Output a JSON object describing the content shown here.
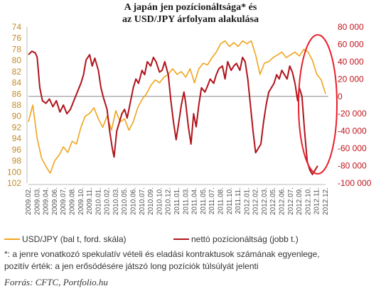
{
  "title_line1": "A japán jen pozícionáltsága* és",
  "title_line2": "az USD/JPY árfolyam alakulása",
  "legend": {
    "left": "USD/JPY (bal t,  ford. skála)",
    "right": "nettó pozícionáltság (jobb t.)"
  },
  "note_line1": "*: a jenre vonatkozó spekulatív vételi és eladási kontraktusok számának egyenlege,",
  "note_line2": "pozitív érték: a jen erősödésére játszó long pozíciók túlsúlyát jelenti",
  "source": "Forrás: CFTC, Portfolio.hu",
  "colors": {
    "usdjpy": "#f0a41e",
    "position": "#b0141c",
    "highlight": "#e8202a",
    "zero_line": "#888888"
  },
  "chart_data": {
    "type": "line",
    "x_labels": [
      "2009.02.",
      "2009.03.",
      "2009.04.",
      "2009.06.",
      "2009.07.",
      "2009.08.",
      "2009.10.",
      "2009.11.",
      "2010.01.",
      "2010.02.",
      "2010.03.",
      "2010.05.",
      "2010.06.",
      "2010.07.",
      "2010.09.",
      "2010.10.",
      "2010.12.",
      "2011.01.",
      "2011.03.",
      "2011.04.",
      "2011.05.",
      "2011.07.",
      "2011.08.",
      "2011.10.",
      "2011.11.",
      "2012.01.",
      "2012.02.",
      "2012.03.",
      "2012.05.",
      "2012.06.",
      "2012.07.",
      "2012.09.",
      "2012.10.",
      "2012.11.",
      "2012.12."
    ],
    "left_axis": {
      "ticks": [
        "74",
        "76",
        "78",
        "80",
        "82",
        "84",
        "86",
        "88",
        "90",
        "92",
        "94",
        "96",
        "98",
        "100",
        "102"
      ],
      "range": [
        74,
        102
      ],
      "reversed": true
    },
    "right_axis": {
      "ticks": [
        "80 000",
        "60 000",
        "40 000",
        "20 000",
        "0",
        "-20 000",
        "-40 000",
        "-60 000",
        "-80 000",
        "-100 000"
      ],
      "range": [
        -100000,
        80000
      ]
    },
    "series": [
      {
        "name": "USD/JPY (bal t,  ford. skála)",
        "axis": "left",
        "points": [
          [
            0,
            91.0
          ],
          [
            0.5,
            88.0
          ],
          [
            1,
            94.0
          ],
          [
            1.5,
            97.5
          ],
          [
            2,
            99.0
          ],
          [
            2.5,
            100.2
          ],
          [
            3,
            98.0
          ],
          [
            3.5,
            97.0
          ],
          [
            4,
            95.5
          ],
          [
            4.5,
            96.5
          ],
          [
            5,
            94.5
          ],
          [
            5.5,
            95.0
          ],
          [
            6,
            92.0
          ],
          [
            6.5,
            90.0
          ],
          [
            7,
            89.5
          ],
          [
            7.5,
            88.5
          ],
          [
            8,
            90.5
          ],
          [
            8.5,
            92.0
          ],
          [
            9,
            90.0
          ],
          [
            9.5,
            92.5
          ],
          [
            10,
            89.0
          ],
          [
            10.5,
            91.0
          ],
          [
            11,
            90.5
          ],
          [
            11.5,
            92.5
          ],
          [
            12,
            91.0
          ],
          [
            12.5,
            88.5
          ],
          [
            13,
            87.0
          ],
          [
            13.5,
            86.0
          ],
          [
            14,
            84.5
          ],
          [
            14.5,
            83.5
          ],
          [
            15,
            84.0
          ],
          [
            15.5,
            83.0
          ],
          [
            16,
            82.5
          ],
          [
            16.5,
            81.5
          ],
          [
            17,
            82.5
          ],
          [
            17.5,
            82.0
          ],
          [
            18,
            83.0
          ],
          [
            18.5,
            81.5
          ],
          [
            19,
            84.0
          ],
          [
            19.5,
            81.5
          ],
          [
            20,
            80.5
          ],
          [
            20.5,
            80.8
          ],
          [
            21,
            79.5
          ],
          [
            21.5,
            78.5
          ],
          [
            22,
            77.0
          ],
          [
            22.5,
            76.5
          ],
          [
            23,
            77.5
          ],
          [
            23.5,
            76.8
          ],
          [
            24,
            77.5
          ],
          [
            24.5,
            76.5
          ],
          [
            25,
            77.0
          ],
          [
            25.5,
            76.5
          ],
          [
            26,
            79.0
          ],
          [
            26.5,
            82.5
          ],
          [
            27,
            80.5
          ],
          [
            27.5,
            80.2
          ],
          [
            28,
            79.5
          ],
          [
            28.5,
            79.0
          ],
          [
            29,
            78.5
          ],
          [
            29.5,
            79.5
          ],
          [
            30,
            79.0
          ],
          [
            30.5,
            78.5
          ],
          [
            31,
            79.2
          ],
          [
            31.5,
            78.0
          ],
          [
            32,
            78.5
          ],
          [
            32.5,
            80.0
          ],
          [
            33,
            82.5
          ],
          [
            33.5,
            83.5
          ],
          [
            34,
            86.0
          ]
        ]
      },
      {
        "name": "nettó pozícionáltság (jobb t.)",
        "axis": "right",
        "points": [
          [
            0,
            48000
          ],
          [
            0.4,
            52000
          ],
          [
            0.8,
            50000
          ],
          [
            1,
            45000
          ],
          [
            1.3,
            10000
          ],
          [
            1.6,
            -5000
          ],
          [
            2,
            -8000
          ],
          [
            2.4,
            -3000
          ],
          [
            2.8,
            -12000
          ],
          [
            3.2,
            -5000
          ],
          [
            3.6,
            -18000
          ],
          [
            4,
            -10000
          ],
          [
            4.4,
            -20000
          ],
          [
            4.8,
            -15000
          ],
          [
            5.2,
            -5000
          ],
          [
            5.6,
            5000
          ],
          [
            6,
            15000
          ],
          [
            6.3,
            25000
          ],
          [
            6.6,
            42000
          ],
          [
            7,
            48000
          ],
          [
            7.3,
            35000
          ],
          [
            7.6,
            44000
          ],
          [
            8,
            30000
          ],
          [
            8.3,
            10000
          ],
          [
            8.6,
            -2000
          ],
          [
            9,
            -15000
          ],
          [
            9.3,
            -40000
          ],
          [
            9.6,
            -60000
          ],
          [
            9.8,
            -70000
          ],
          [
            10.1,
            -40000
          ],
          [
            10.4,
            -30000
          ],
          [
            10.7,
            -20000
          ],
          [
            11,
            -15000
          ],
          [
            11.3,
            -25000
          ],
          [
            11.6,
            -10000
          ],
          [
            12,
            10000
          ],
          [
            12.3,
            20000
          ],
          [
            12.6,
            15000
          ],
          [
            13,
            30000
          ],
          [
            13.3,
            25000
          ],
          [
            13.6,
            40000
          ],
          [
            14,
            35000
          ],
          [
            14.3,
            45000
          ],
          [
            14.6,
            40000
          ],
          [
            15,
            28000
          ],
          [
            15.3,
            30000
          ],
          [
            15.6,
            40000
          ],
          [
            16,
            25000
          ],
          [
            16.3,
            -5000
          ],
          [
            16.6,
            -30000
          ],
          [
            16.9,
            -50000
          ],
          [
            17.2,
            -30000
          ],
          [
            17.5,
            -10000
          ],
          [
            17.8,
            5000
          ],
          [
            18,
            -8000
          ],
          [
            18.3,
            -35000
          ],
          [
            18.6,
            -55000
          ],
          [
            18.9,
            -20000
          ],
          [
            19.2,
            -35000
          ],
          [
            19.5,
            -10000
          ],
          [
            19.8,
            10000
          ],
          [
            20.2,
            5000
          ],
          [
            20.5,
            12000
          ],
          [
            20.8,
            20000
          ],
          [
            21.2,
            15000
          ],
          [
            21.5,
            25000
          ],
          [
            21.8,
            32000
          ],
          [
            22.2,
            35000
          ],
          [
            22.5,
            20000
          ],
          [
            22.8,
            40000
          ],
          [
            23.2,
            30000
          ],
          [
            23.5,
            35000
          ],
          [
            23.8,
            38000
          ],
          [
            24.2,
            30000
          ],
          [
            24.5,
            45000
          ],
          [
            24.8,
            40000
          ],
          [
            25.1,
            20000
          ],
          [
            25.4,
            -10000
          ],
          [
            25.7,
            -40000
          ],
          [
            26,
            -65000
          ],
          [
            26.3,
            -60000
          ],
          [
            26.6,
            -55000
          ],
          [
            26.9,
            -30000
          ],
          [
            27.2,
            -10000
          ],
          [
            27.5,
            5000
          ],
          [
            27.8,
            10000
          ],
          [
            28.1,
            15000
          ],
          [
            28.4,
            25000
          ],
          [
            28.7,
            20000
          ],
          [
            29,
            30000
          ],
          [
            29.3,
            25000
          ],
          [
            29.6,
            20000
          ],
          [
            29.9,
            35000
          ],
          [
            30.2,
            28000
          ],
          [
            30.5,
            15000
          ],
          [
            30.8,
            -5000
          ],
          [
            31,
            10000
          ],
          [
            31.3,
            0
          ],
          [
            31.6,
            -40000
          ],
          [
            31.9,
            -75000
          ],
          [
            32.2,
            -85000
          ],
          [
            32.5,
            -90000
          ],
          [
            32.8,
            -85000
          ],
          [
            33.1,
            -80000
          ]
        ]
      }
    ]
  }
}
